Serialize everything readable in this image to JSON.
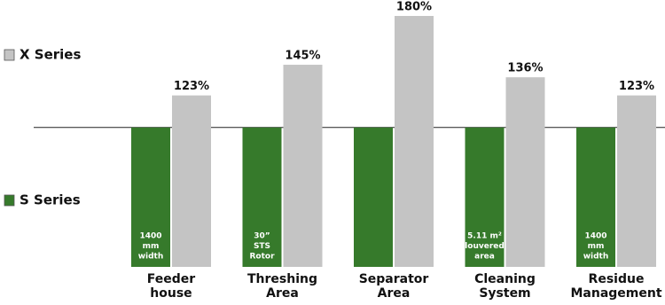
{
  "chart_data": {
    "type": "bar",
    "categories": [
      "Feeder house",
      "Threshing Area",
      "Separator Area",
      "Cleaning System",
      "Residue Management"
    ],
    "series": [
      {
        "name": "S Series",
        "color": "#367a2b",
        "values": [
          100,
          100,
          100,
          100,
          100
        ],
        "bar_labels": [
          [
            "1400",
            "mm",
            "width"
          ],
          [
            "30”",
            "STS",
            "Rotor"
          ],
          null,
          [
            "5.11 m²",
            "louvered",
            "area"
          ],
          [
            "1400",
            "mm",
            "width"
          ]
        ]
      },
      {
        "name": "X Series",
        "color": "#c4c4c4",
        "values": [
          123,
          145,
          180,
          136,
          123
        ],
        "value_labels": [
          "123%",
          "145%",
          "180%",
          "136%",
          "123%"
        ]
      }
    ],
    "ylim": [
      0,
      180
    ],
    "reference_line": 100
  }
}
